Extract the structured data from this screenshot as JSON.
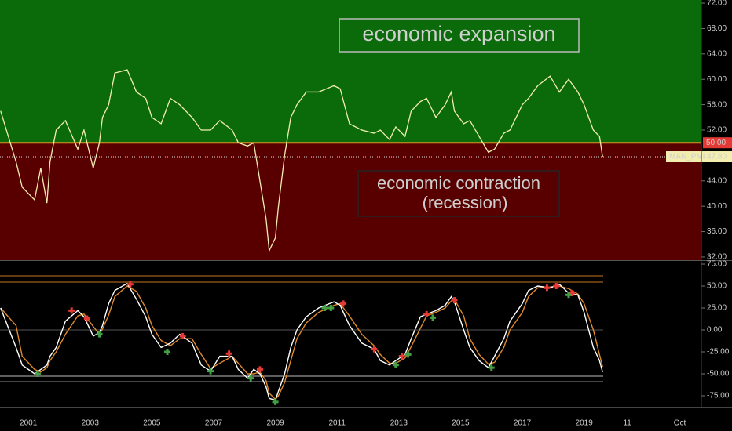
{
  "chart_data": [
    {
      "type": "line",
      "x": [
        2000.1,
        2000.6,
        2000.8,
        2001.2,
        2001.4,
        2001.6,
        2001.7,
        2001.9,
        2002.2,
        2002.6,
        2002.8,
        2003.1,
        2003.3,
        2003.4,
        2003.6,
        2003.8,
        2004.2,
        2004.5,
        2004.8,
        2005.0,
        2005.3,
        2005.6,
        2005.9,
        2006.3,
        2006.6,
        2006.9,
        2007.2,
        2007.6,
        2007.8,
        2008.1,
        2008.3,
        2008.5,
        2008.7,
        2008.8,
        2009.0,
        2009.1,
        2009.3,
        2009.5,
        2009.7,
        2010.0,
        2010.4,
        2010.9,
        2011.1,
        2011.4,
        2011.8,
        2012.2,
        2012.4,
        2012.7,
        2012.9,
        2013.2,
        2013.4,
        2013.7,
        2013.9,
        2014.2,
        2014.5,
        2014.7,
        2014.8,
        2015.1,
        2015.3,
        2015.6,
        2015.9,
        2016.1,
        2016.4,
        2016.6,
        2017.0,
        2017.2,
        2017.5,
        2017.9,
        2018.2,
        2018.5,
        2018.8,
        2019.0,
        2019.3,
        2019.5,
        2019.6
      ],
      "series": [
        {
          "name": "MAN_PMI",
          "color": "#f3edb0",
          "last_label": "47.80",
          "values": [
            55,
            47,
            43,
            41,
            46,
            40.5,
            47,
            52,
            53.5,
            49,
            52,
            46,
            50,
            54,
            56,
            61,
            61.5,
            58,
            57,
            54,
            53,
            57,
            56,
            54,
            52,
            52,
            53.5,
            52,
            50,
            49.5,
            50,
            44,
            38,
            33,
            35,
            40,
            48,
            54,
            56,
            58,
            58,
            59,
            58.5,
            53,
            52,
            51.5,
            52,
            50.5,
            52.5,
            51,
            55,
            56.5,
            57,
            54,
            56,
            58,
            55,
            53,
            53.5,
            51,
            48.5,
            49,
            51.5,
            52,
            56,
            57,
            59,
            60.5,
            58,
            60,
            58,
            56,
            52,
            51,
            47.8
          ]
        }
      ],
      "threshold": {
        "value": 50,
        "label": "50.00",
        "line_color": "#e0922a",
        "badge_color": "#e53935",
        "above_color": "#0b6b0b",
        "below_color": "#580000"
      },
      "annotations": [
        {
          "lines": [
            "economic expansion"
          ],
          "color": "#3df5e8"
        },
        {
          "lines": [
            "economic contraction",
            "(recession)"
          ],
          "color": "#ffffff"
        }
      ],
      "xlim": [
        2000.08,
        2022.8
      ],
      "ylim": [
        31.5,
        72.5
      ],
      "yticks": [
        {
          "value": 32,
          "label": "32.00"
        },
        {
          "value": 36,
          "label": "36.00"
        },
        {
          "value": 40,
          "label": "40.00"
        },
        {
          "value": 44,
          "label": "44.00"
        },
        {
          "value": 52,
          "label": "52.00"
        },
        {
          "value": 56,
          "label": "56.00"
        },
        {
          "value": 60,
          "label": "60.00"
        },
        {
          "value": 64,
          "label": "64.00"
        },
        {
          "value": 68,
          "label": "68.00"
        },
        {
          "value": 72,
          "label": "72.00"
        }
      ]
    },
    {
      "type": "line",
      "x": [
        2000.1,
        2000.6,
        2000.8,
        2001.2,
        2001.4,
        2001.6,
        2001.7,
        2001.9,
        2002.2,
        2002.6,
        2002.8,
        2003.1,
        2003.3,
        2003.4,
        2003.6,
        2003.8,
        2004.2,
        2004.5,
        2004.8,
        2005.0,
        2005.3,
        2005.6,
        2005.9,
        2006.3,
        2006.6,
        2006.9,
        2007.2,
        2007.6,
        2007.8,
        2008.1,
        2008.3,
        2008.5,
        2008.7,
        2008.8,
        2009.0,
        2009.1,
        2009.3,
        2009.5,
        2009.7,
        2010.0,
        2010.4,
        2010.9,
        2011.1,
        2011.4,
        2011.8,
        2012.2,
        2012.4,
        2012.7,
        2012.9,
        2013.2,
        2013.4,
        2013.7,
        2013.9,
        2014.2,
        2014.5,
        2014.7,
        2014.8,
        2015.1,
        2015.3,
        2015.6,
        2015.9,
        2016.1,
        2016.4,
        2016.6,
        2017.0,
        2017.2,
        2017.5,
        2017.9,
        2018.2,
        2018.5,
        2018.8,
        2019.0,
        2019.3,
        2019.5,
        2019.6
      ],
      "series": [
        {
          "color": "#e08a2a",
          "values": [
            25,
            5,
            -30,
            -45,
            -48,
            -43,
            -35,
            -25,
            -5,
            16,
            18,
            4,
            -5,
            1,
            17,
            38,
            50,
            44,
            25,
            5,
            -12,
            -18,
            -10,
            -10,
            -28,
            -44,
            -38,
            -30,
            -38,
            -50,
            -50,
            -48,
            -58,
            -72,
            -79,
            -75,
            -60,
            -35,
            -10,
            8,
            20,
            28,
            30,
            16,
            -5,
            -18,
            -28,
            -38,
            -38,
            -32,
            -19,
            2,
            16,
            20,
            25,
            33,
            35,
            16,
            -10,
            -28,
            -39,
            -37,
            -20,
            0,
            20,
            38,
            48,
            49,
            50,
            47,
            41,
            30,
            0,
            -28,
            -42
          ]
        },
        {
          "color": "#ffffff",
          "values": [
            25,
            -20,
            -40,
            -50,
            -45,
            -40,
            -30,
            -20,
            10,
            22,
            15,
            -7,
            -3,
            5,
            30,
            45,
            53,
            35,
            15,
            -5,
            -20,
            -15,
            -5,
            -15,
            -40,
            -47,
            -30,
            -30,
            -45,
            -55,
            -45,
            -50,
            -65,
            -78,
            -80,
            -70,
            -50,
            -20,
            0,
            15,
            25,
            32,
            28,
            5,
            -15,
            -22,
            -35,
            -40,
            -35,
            -28,
            -10,
            15,
            18,
            22,
            28,
            38,
            32,
            0,
            -20,
            -35,
            -43,
            -30,
            -10,
            10,
            30,
            45,
            50,
            48,
            52,
            42,
            40,
            20,
            -20,
            -35,
            -48
          ]
        }
      ],
      "markers": [
        {
          "color": "#e53935",
          "x": [
            2002.4,
            2002.9,
            2004.3,
            2006.0,
            2007.5,
            2008.5,
            2011.2,
            2012.2,
            2013.1,
            2013.9,
            2014.8,
            2017.8,
            2018.1,
            2018.6
          ],
          "values": [
            22,
            13,
            52,
            -7,
            -27,
            -45,
            30,
            -22,
            -30,
            18,
            34,
            48,
            50,
            42
          ]
        },
        {
          "color": "#43a047",
          "x": [
            2001.3,
            2003.3,
            2005.5,
            2006.9,
            2008.2,
            2009.0,
            2010.6,
            2010.8,
            2012.9,
            2013.3,
            2014.1,
            2016.0,
            2018.5
          ],
          "values": [
            -50,
            -5,
            -25,
            -47,
            -55,
            -82,
            25,
            25,
            -40,
            -28,
            14,
            -43,
            40
          ]
        }
      ],
      "levels": [
        {
          "value": 61.6,
          "color": "#c8761f"
        },
        {
          "value": 54.5,
          "color": "#c8761f"
        },
        {
          "value": 0,
          "color": "#555555"
        },
        {
          "value": -52.7,
          "color": "#bbbbbb"
        },
        {
          "value": -59,
          "color": "#bbbbbb"
        }
      ],
      "xlim": [
        2000.08,
        2022.8
      ],
      "ylim": [
        -88.4,
        78.6
      ],
      "yticks": [
        {
          "value": -75,
          "label": "-75.00"
        },
        {
          "value": -50,
          "label": "-50.00"
        },
        {
          "value": -25,
          "label": "-25.00"
        },
        {
          "value": 0,
          "label": "0.00"
        },
        {
          "value": 25,
          "label": "25.00"
        },
        {
          "value": 50,
          "label": "50.00"
        },
        {
          "value": 75,
          "label": "75.00"
        }
      ],
      "xticks": [
        2001,
        2003,
        2005,
        2007,
        2009,
        2011,
        2013,
        2015,
        2017,
        2019,
        {
          "value": 2020.4,
          "label": "11"
        },
        {
          "value": 2022.1,
          "label": "Oct"
        }
      ]
    }
  ]
}
